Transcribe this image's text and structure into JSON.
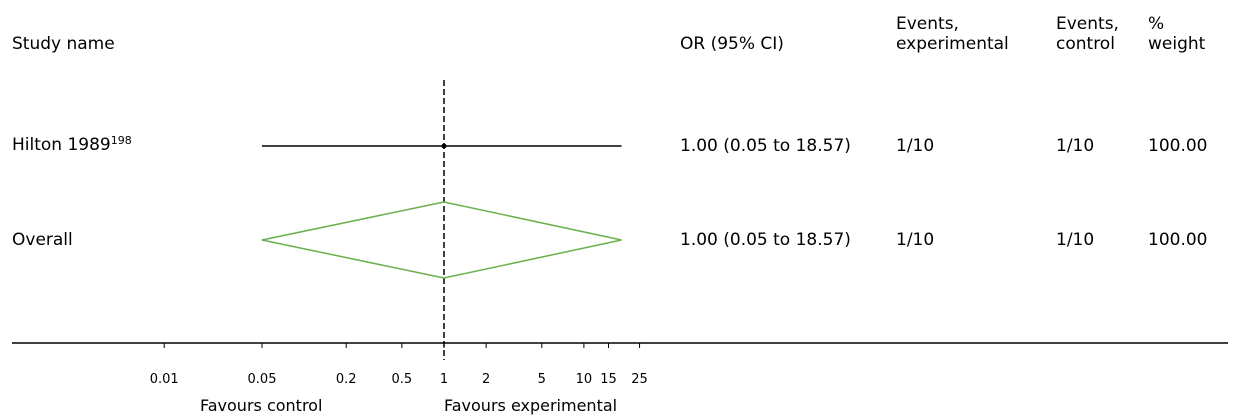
{
  "chart_data": {
    "type": "forest",
    "scale": "log",
    "columns": {
      "study": "Study name",
      "or": "OR (95% CI)",
      "events_exp": [
        "Events,",
        "experimental"
      ],
      "events_ctrl": [
        "Events,",
        "control"
      ],
      "weight": [
        "%",
        "weight"
      ]
    },
    "rows": [
      {
        "study": "Hilton 1989",
        "ref": "198",
        "or": 1.0,
        "lo": 0.05,
        "hi": 18.57,
        "or_text": "1.00 (0.05 to 18.57)",
        "events_exp": "1/10",
        "events_ctrl": "1/10",
        "weight": "100.00"
      }
    ],
    "overall": {
      "label": "Overall",
      "or": 1.0,
      "lo": 0.05,
      "hi": 18.57,
      "or_text": "1.00 (0.05 to 18.57)",
      "events_exp": "1/10",
      "events_ctrl": "1/10",
      "weight": "100.00"
    },
    "ticks": [
      0.01,
      0.05,
      0.2,
      0.5,
      1,
      2,
      5,
      10,
      15,
      25
    ],
    "tick_labels": [
      "0.01",
      "0.05",
      "0.2",
      "0.5",
      "1",
      "2",
      "5",
      "10",
      "15",
      "25"
    ],
    "favours_left": "Favours control",
    "favours_right": "Favours experimental",
    "colors": {
      "overall": "#6ab04c",
      "line": "#000000"
    }
  }
}
